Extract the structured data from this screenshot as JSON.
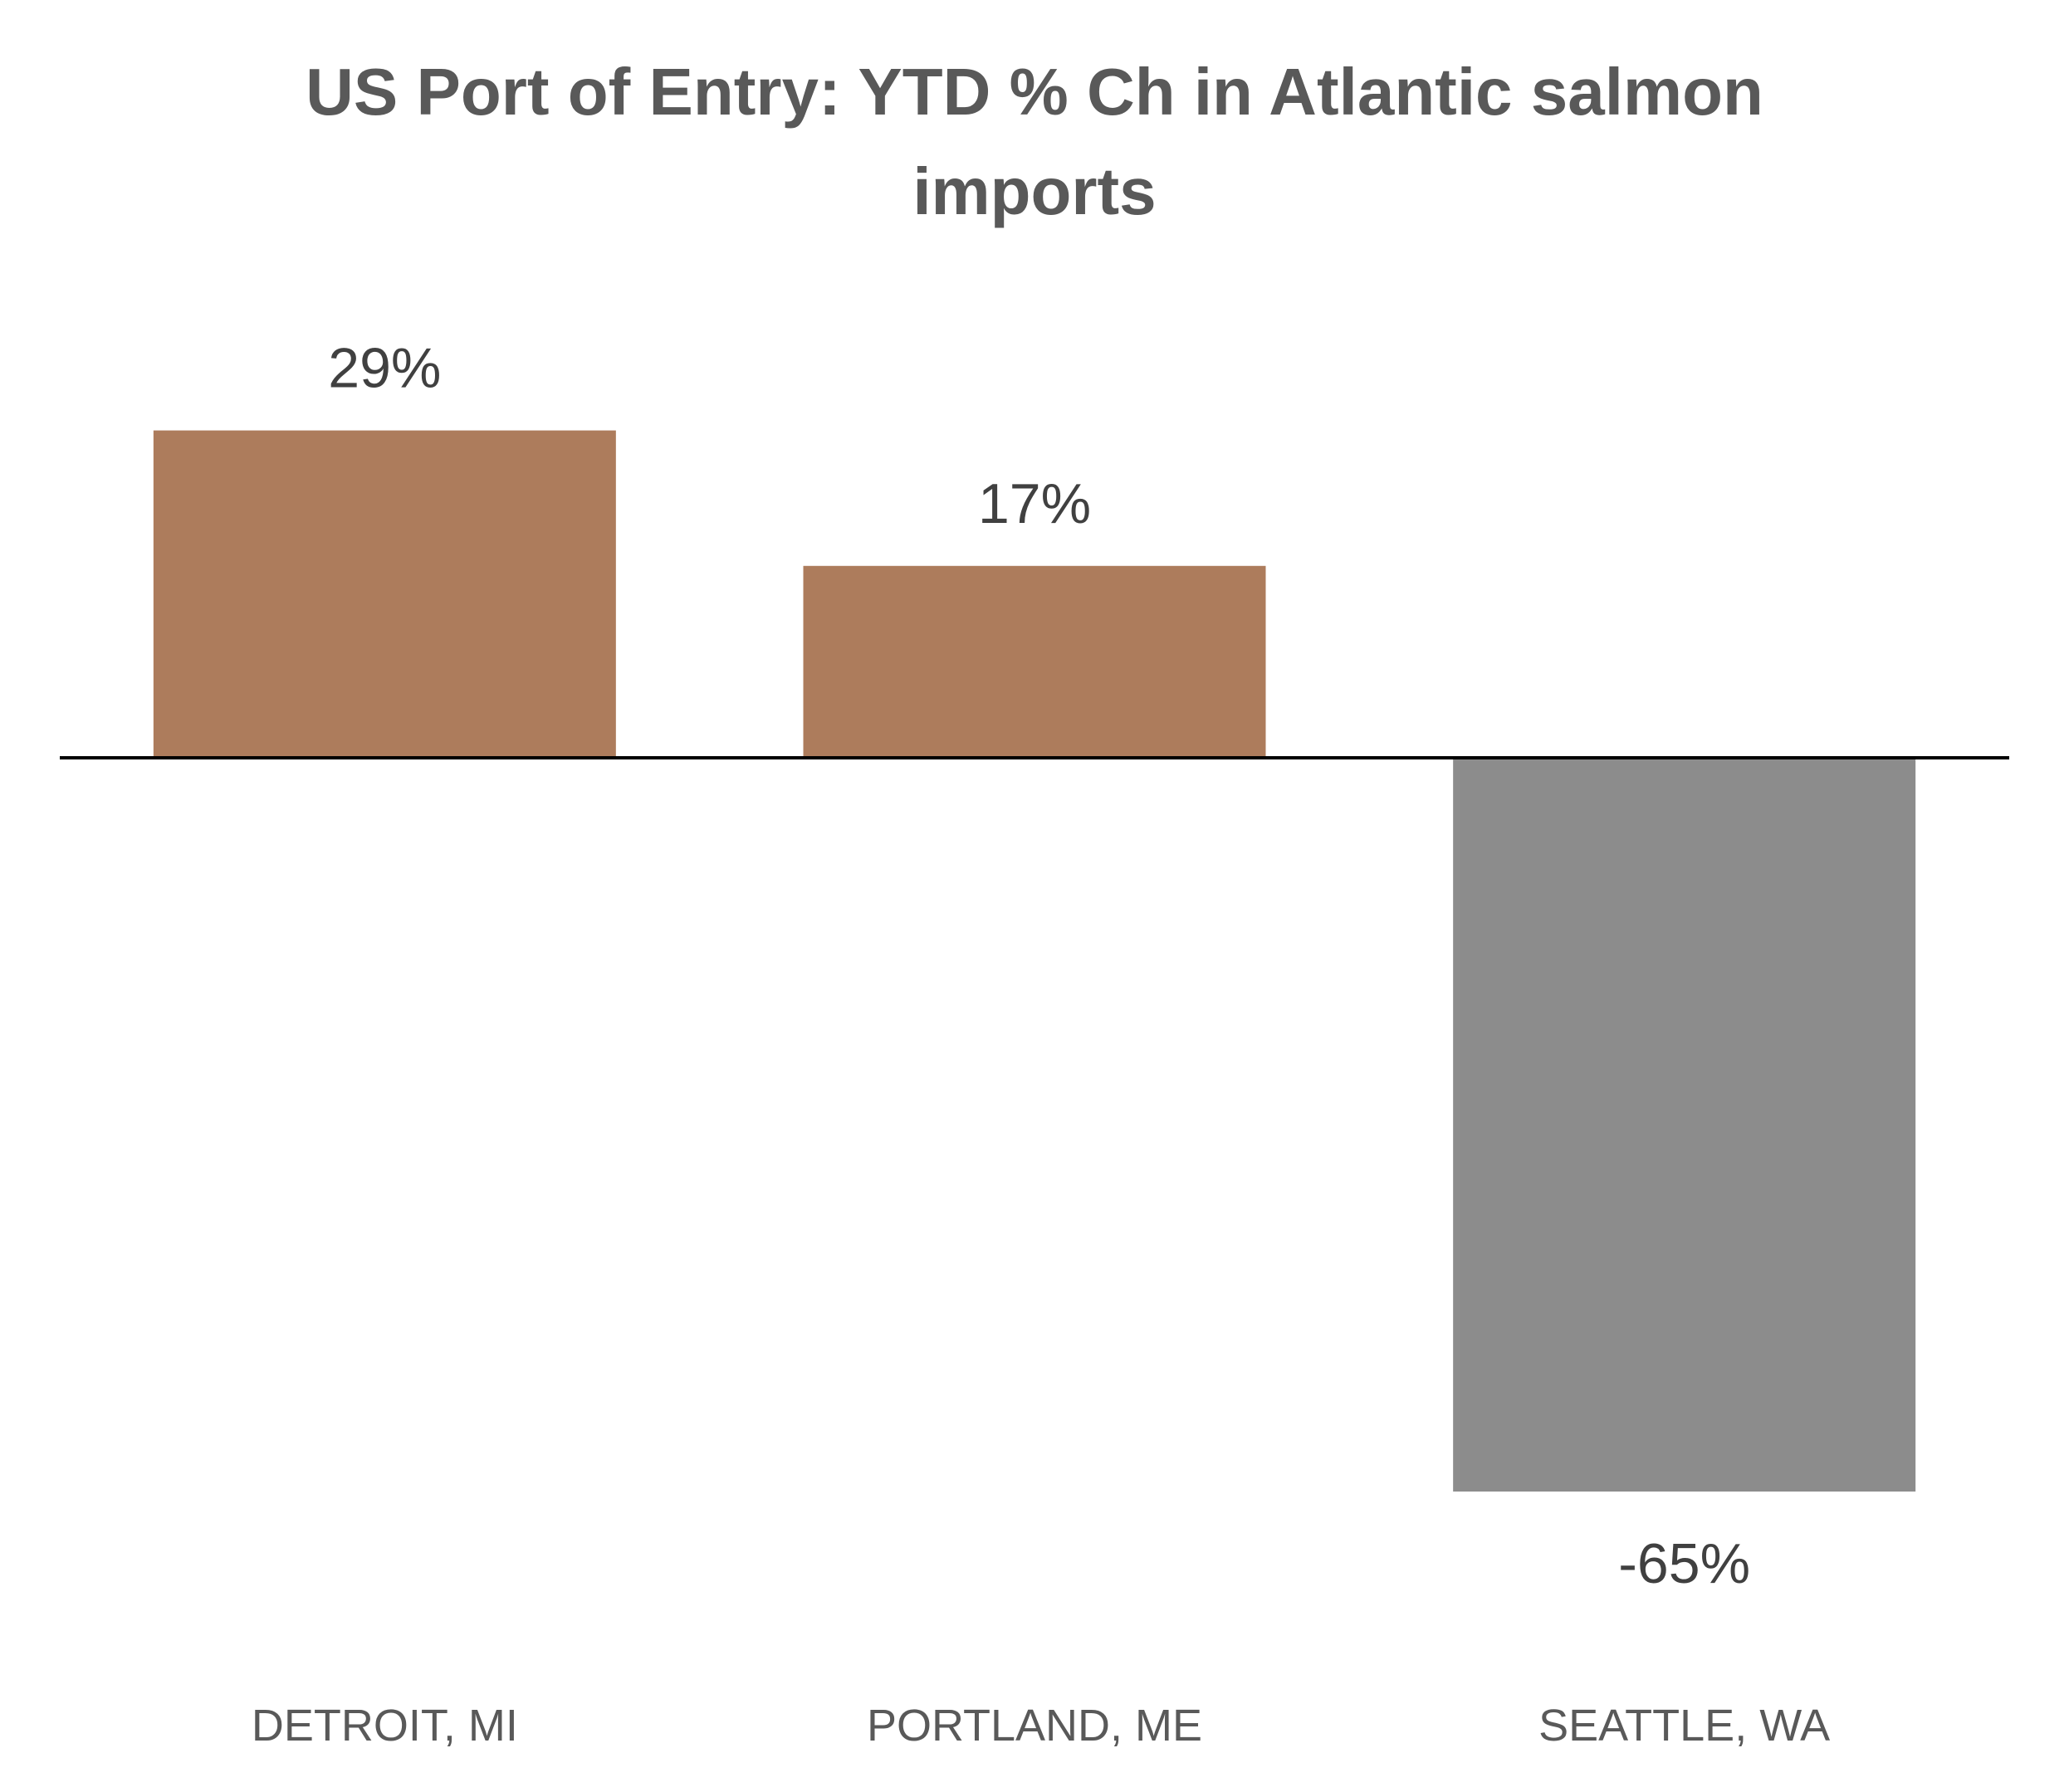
{
  "chart_data": {
    "type": "bar",
    "title": "US Port of Entry: YTD % Ch in Atlantic salmon imports",
    "title_lines": [
      "US Port of Entry: YTD % Ch in Atlantic salmon",
      "imports"
    ],
    "categories": [
      "DETROIT, MI",
      "PORTLAND, ME",
      "SEATTLE, WA"
    ],
    "values": [
      29,
      17,
      -65
    ],
    "value_labels": [
      "29%",
      "17%",
      "-65%"
    ],
    "unit": "%",
    "ylim": [
      -65,
      29
    ],
    "grid": false,
    "legend": "none",
    "colors": {
      "positive": "#AD7C5C",
      "negative": "#8C8C8C",
      "zero_line": "#000000"
    }
  }
}
